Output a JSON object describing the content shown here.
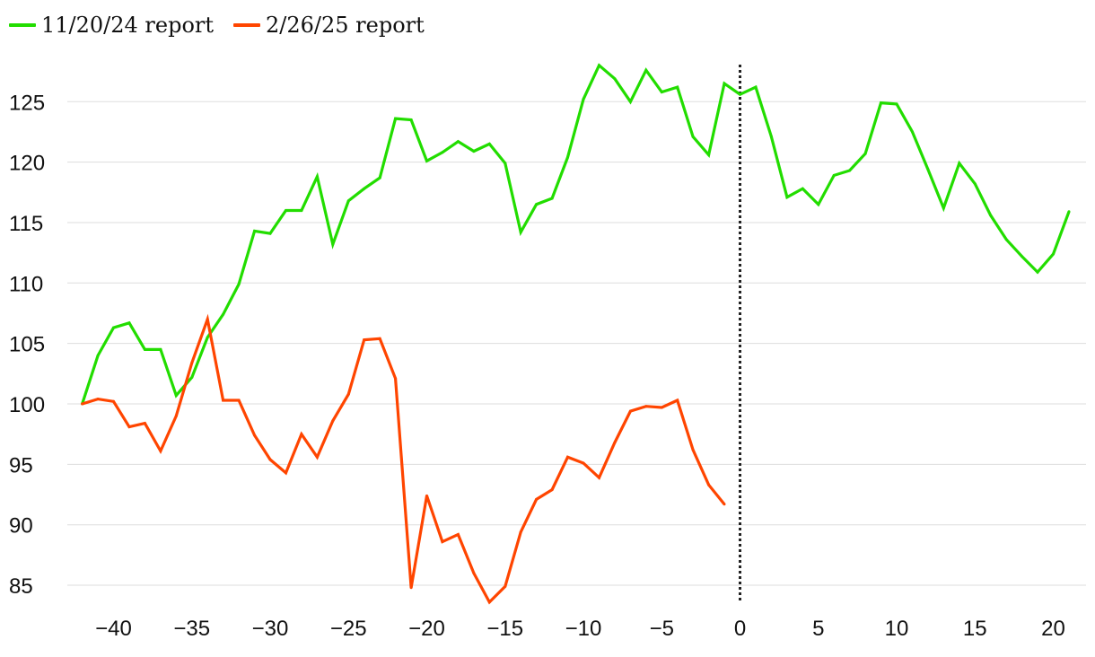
{
  "chart_data": {
    "type": "line",
    "title": "",
    "xlabel": "",
    "ylabel": "",
    "xlim": [
      -42,
      21
    ],
    "ylim": [
      83,
      128.5
    ],
    "x_ticks": [
      -40,
      -35,
      -30,
      -25,
      -20,
      -15,
      -10,
      -5,
      0,
      5,
      10,
      15,
      20
    ],
    "x_tick_labels": [
      "−40",
      "−35",
      "−30",
      "−25",
      "−20",
      "−15",
      "−10",
      "−5",
      "0",
      "5",
      "10",
      "15",
      "20"
    ],
    "y_ticks": [
      85,
      90,
      95,
      100,
      105,
      110,
      115,
      120,
      125
    ],
    "y_tick_labels": [
      "85",
      "90",
      "95",
      "100",
      "105",
      "110",
      "115",
      "120",
      "125"
    ],
    "grid": "horizontal",
    "reference_line": {
      "x": 0,
      "style": "dotted"
    },
    "legend_position": "top-left",
    "series": [
      {
        "name": "11/20/24 report",
        "color": "#22dd00",
        "x_start": -42,
        "values": [
          100.0,
          104.0,
          106.3,
          106.7,
          104.5,
          104.5,
          100.7,
          102.2,
          105.5,
          107.4,
          109.9,
          114.3,
          114.1,
          116.0,
          116.0,
          118.8,
          113.2,
          116.8,
          117.8,
          118.7,
          123.6,
          123.5,
          120.1,
          120.8,
          121.7,
          120.9,
          121.5,
          119.9,
          114.2,
          116.5,
          117.0,
          120.4,
          125.2,
          128.0,
          126.9,
          125.0,
          127.6,
          125.8,
          126.2,
          122.1,
          120.6,
          126.5,
          125.6,
          126.2,
          122.1,
          117.1,
          117.8,
          116.5,
          118.9,
          119.3,
          120.7,
          124.9,
          124.8,
          122.5,
          119.4,
          116.2,
          119.9,
          118.2,
          115.6,
          113.6,
          112.2,
          110.9,
          112.4,
          115.9
        ]
      },
      {
        "name": "2/26/25 report",
        "color": "#ff4500",
        "x_start": -42,
        "values": [
          100.0,
          100.4,
          100.2,
          98.1,
          98.4,
          96.1,
          99.0,
          103.4,
          107.0,
          100.3,
          100.3,
          97.4,
          95.4,
          94.3,
          97.5,
          95.6,
          98.6,
          100.8,
          105.3,
          105.4,
          102.1,
          84.8,
          92.4,
          88.6,
          89.2,
          86.0,
          83.6,
          84.9,
          89.4,
          92.1,
          92.9,
          95.6,
          95.1,
          93.9,
          96.8,
          99.4,
          99.8,
          99.7,
          100.3,
          96.2,
          93.3,
          91.7
        ]
      }
    ]
  }
}
